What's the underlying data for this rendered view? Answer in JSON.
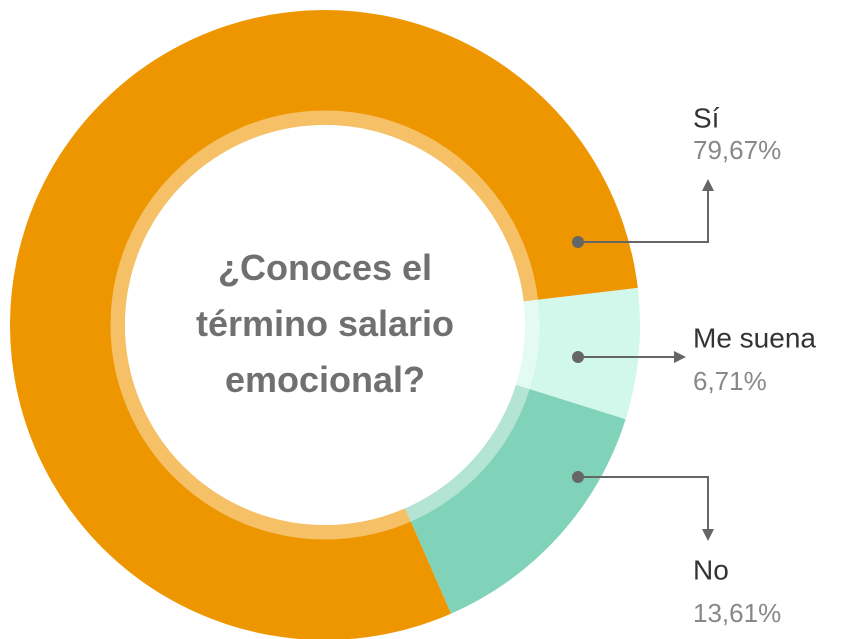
{
  "chart_data": {
    "type": "donut",
    "title": "¿Conoces el término salario emocional?",
    "categories": [
      "Sí",
      "Me suena",
      "No"
    ],
    "values": [
      79.67,
      6.71,
      13.61
    ],
    "value_labels": [
      "79,67%",
      "6,71%",
      "13,61%"
    ],
    "colors": [
      "#ee9600",
      "#d2f8ec",
      "#80d2b8"
    ]
  }
}
